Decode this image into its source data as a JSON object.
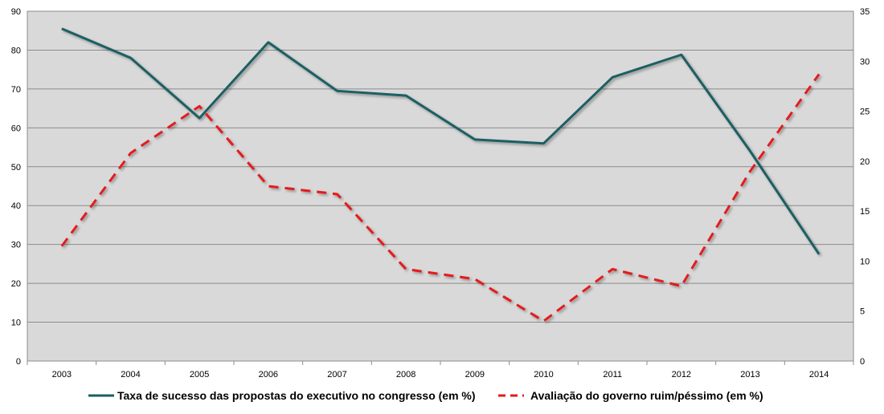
{
  "chart_data": {
    "type": "line",
    "categories": [
      "2003",
      "2004",
      "2005",
      "2006",
      "2007",
      "2008",
      "2009",
      "2010",
      "2011",
      "2012",
      "2013",
      "2014"
    ],
    "series": [
      {
        "name": "Taxa de sucesso das propostas do executivo no congresso (em %)",
        "axis": "left",
        "style": "solid",
        "color": "#1a5e63",
        "values": [
          85.5,
          78.0,
          62.5,
          82.0,
          69.5,
          68.3,
          57.0,
          56.0,
          73.0,
          78.8,
          54.0,
          27.5
        ]
      },
      {
        "name": "Avaliação do governo ruim/péssimo (em %)",
        "axis": "right",
        "style": "dashed",
        "color": "#e31a1c",
        "values": [
          11.5,
          20.8,
          25.5,
          17.5,
          16.7,
          9.2,
          8.2,
          4.0,
          9.2,
          7.5,
          19.0,
          28.7
        ]
      }
    ],
    "y_left": {
      "lim": [
        0,
        90
      ],
      "ticks": [
        "0",
        "10",
        "20",
        "30",
        "40",
        "50",
        "60",
        "70",
        "80",
        "90"
      ]
    },
    "y_right": {
      "lim": [
        0,
        35
      ],
      "ticks": [
        "0",
        "5",
        "10",
        "15",
        "20",
        "25",
        "30",
        "35"
      ]
    },
    "grid": true,
    "legend_position": "bottom",
    "plot_background": "#d9d9d9"
  }
}
